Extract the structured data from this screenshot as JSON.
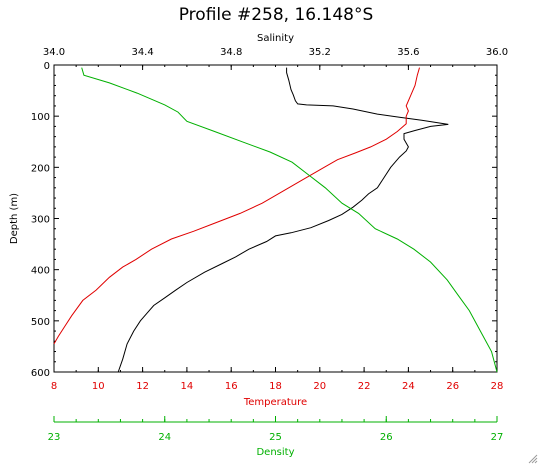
{
  "chart_data": {
    "type": "line",
    "title": "Profile #258, 16.148°S",
    "ylabel": "Depth (m)",
    "ylim": [
      600,
      0
    ],
    "y_ticks": [
      0,
      100,
      200,
      300,
      400,
      500,
      600
    ],
    "grid": false,
    "colors": {
      "Salinity": "#000000",
      "Temperature": "#e00000",
      "Density": "#00b000"
    },
    "axes": {
      "Salinity": {
        "label": "Salinity",
        "position": "top",
        "range": [
          34.0,
          36.0
        ],
        "ticks": [
          34.0,
          34.4,
          34.8,
          35.2,
          35.6,
          36.0
        ],
        "tick_labels": [
          "34.0",
          "34.4",
          "34.8",
          "35.2",
          "35.6",
          "36.0"
        ]
      },
      "Temperature": {
        "label": "Temperature",
        "position": "bottom",
        "range": [
          8,
          28
        ],
        "ticks": [
          8,
          10,
          12,
          14,
          16,
          18,
          20,
          22,
          24,
          26,
          28
        ],
        "tick_labels": [
          "8",
          "10",
          "12",
          "14",
          "16",
          "18",
          "20",
          "22",
          "24",
          "26",
          "28"
        ]
      },
      "Density": {
        "label": "Density",
        "position": "bottom-secondary",
        "range": [
          23,
          27
        ],
        "ticks": [
          23,
          24,
          25,
          26,
          27
        ],
        "tick_labels": [
          "23",
          "24",
          "25",
          "26",
          "27"
        ]
      }
    },
    "series": [
      {
        "axis": "Salinity",
        "points": [
          [
            35.05,
            5
          ],
          [
            35.05,
            15
          ],
          [
            35.06,
            30
          ],
          [
            35.07,
            48
          ],
          [
            35.08,
            58
          ],
          [
            35.09,
            70
          ],
          [
            35.1,
            76
          ],
          [
            35.14,
            78
          ],
          [
            35.26,
            80
          ],
          [
            35.35,
            86
          ],
          [
            35.46,
            96
          ],
          [
            35.56,
            102
          ],
          [
            35.66,
            108
          ],
          [
            35.78,
            116
          ],
          [
            35.7,
            120
          ],
          [
            35.63,
            128
          ],
          [
            35.58,
            134
          ],
          [
            35.58,
            145
          ],
          [
            35.6,
            160
          ],
          [
            35.59,
            168
          ],
          [
            35.56,
            180
          ],
          [
            35.52,
            200
          ],
          [
            35.49,
            220
          ],
          [
            35.46,
            240
          ],
          [
            35.42,
            252
          ],
          [
            35.39,
            264
          ],
          [
            35.35,
            278
          ],
          [
            35.3,
            292
          ],
          [
            35.24,
            304
          ],
          [
            35.16,
            318
          ],
          [
            35.07,
            328
          ],
          [
            35.0,
            334
          ],
          [
            34.96,
            345
          ],
          [
            34.88,
            360
          ],
          [
            34.82,
            375
          ],
          [
            34.76,
            388
          ],
          [
            34.68,
            405
          ],
          [
            34.6,
            425
          ],
          [
            34.55,
            440
          ],
          [
            34.5,
            455
          ],
          [
            34.45,
            470
          ],
          [
            34.42,
            485
          ],
          [
            34.39,
            500
          ],
          [
            34.36,
            520
          ],
          [
            34.33,
            545
          ],
          [
            34.31,
            575
          ],
          [
            34.29,
            600
          ]
        ]
      },
      {
        "axis": "Temperature",
        "points": [
          [
            24.5,
            5
          ],
          [
            24.4,
            20
          ],
          [
            24.3,
            40
          ],
          [
            24.1,
            60
          ],
          [
            23.9,
            80
          ],
          [
            24.0,
            90
          ],
          [
            23.9,
            100
          ],
          [
            23.9,
            115
          ],
          [
            23.5,
            130
          ],
          [
            23.0,
            145
          ],
          [
            22.3,
            160
          ],
          [
            21.6,
            172
          ],
          [
            20.8,
            185
          ],
          [
            20.2,
            200
          ],
          [
            19.2,
            225
          ],
          [
            18.2,
            250
          ],
          [
            17.4,
            270
          ],
          [
            16.4,
            290
          ],
          [
            15.2,
            310
          ],
          [
            14.3,
            325
          ],
          [
            13.3,
            340
          ],
          [
            12.4,
            360
          ],
          [
            11.7,
            380
          ],
          [
            11.1,
            395
          ],
          [
            10.5,
            415
          ],
          [
            9.9,
            440
          ],
          [
            9.3,
            460
          ],
          [
            8.8,
            490
          ],
          [
            8.5,
            510
          ],
          [
            8.2,
            530
          ],
          [
            8.0,
            545
          ]
        ]
      },
      {
        "axis": "Density",
        "points": [
          [
            23.25,
            5
          ],
          [
            23.27,
            20
          ],
          [
            23.5,
            35
          ],
          [
            23.75,
            55
          ],
          [
            24.0,
            78
          ],
          [
            24.12,
            92
          ],
          [
            24.2,
            110
          ],
          [
            24.45,
            130
          ],
          [
            24.7,
            150
          ],
          [
            24.95,
            170
          ],
          [
            25.15,
            190
          ],
          [
            25.3,
            215
          ],
          [
            25.45,
            240
          ],
          [
            25.6,
            270
          ],
          [
            25.75,
            290
          ],
          [
            25.9,
            320
          ],
          [
            26.1,
            340
          ],
          [
            26.25,
            360
          ],
          [
            26.4,
            385
          ],
          [
            26.55,
            420
          ],
          [
            26.65,
            450
          ],
          [
            26.75,
            480
          ],
          [
            26.85,
            520
          ],
          [
            26.95,
            560
          ],
          [
            27.0,
            600
          ]
        ]
      }
    ]
  }
}
